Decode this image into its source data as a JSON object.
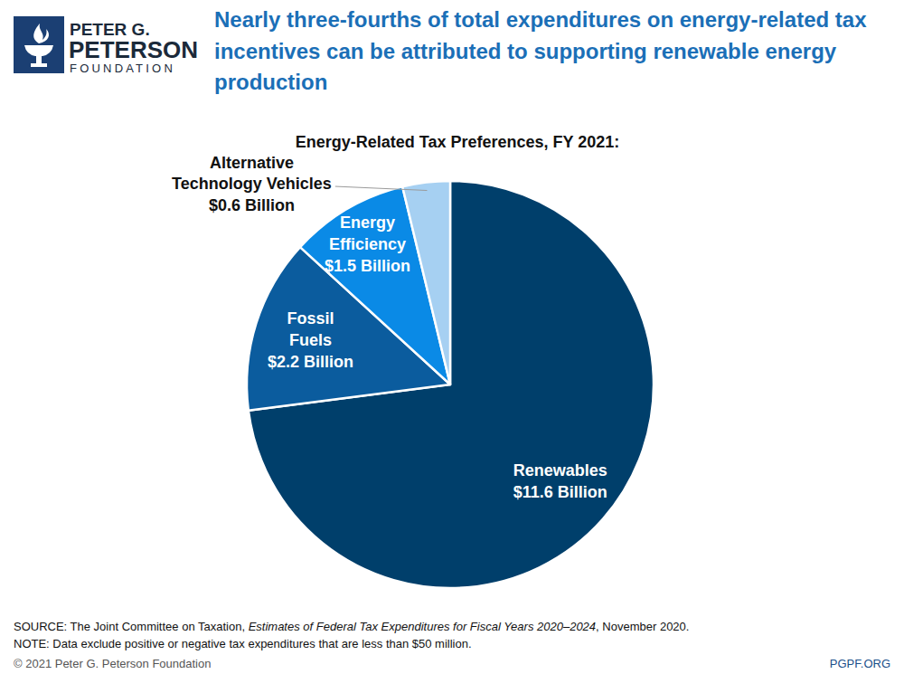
{
  "chart_data": {
    "type": "pie",
    "title": "Nearly three-fourths of total expenditures on energy-related tax incentives can be attributed to supporting renewable energy production",
    "subtitle": "Energy-Related Tax Preferences, FY 2021:",
    "categories": [
      "Renewables",
      "Fossil Fuels",
      "Energy Efficiency",
      "Alternative Technology Vehicles"
    ],
    "values": [
      11.6,
      2.2,
      1.5,
      0.6
    ],
    "value_labels": [
      "$11.6 Billion",
      "$2.2 Billion",
      "$1.5 Billion",
      "$0.6 Billion"
    ],
    "colors": [
      "#003f6b",
      "#0b5c9e",
      "#0a8ae6",
      "#a6d0f2"
    ],
    "data_labels": true,
    "source": [
      "SOURCE: The Joint Committee on Taxation, ",
      "Estimates of Federal Tax Expenditures for Fiscal Years 2020–2024",
      ", November 2020."
    ],
    "note": "NOTE: Data exclude positive or negative tax expenditures that are less than $50 million.",
    "copyright": "© 2021 Peter G. Peterson Foundation",
    "logo": [
      "PETER G.",
      "PETERSON",
      "FOUNDATION"
    ],
    "url": "PGPF.ORG"
  }
}
